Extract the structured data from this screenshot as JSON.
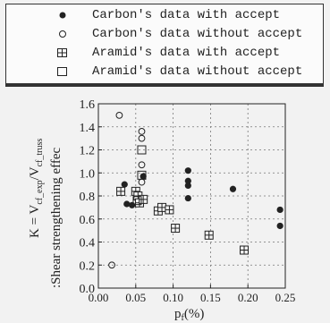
{
  "legend": {
    "items": [
      {
        "label": "Carbon's data with accept",
        "marker": "filled-circle"
      },
      {
        "label": "Carbon's data without accept",
        "marker": "open-circle"
      },
      {
        "label": "Aramid's data with accept",
        "marker": "crossed-square"
      },
      {
        "label": "Aramid's data without accept",
        "marker": "open-square"
      }
    ]
  },
  "chart_data": {
    "type": "scatter",
    "title": "",
    "ylabel_line1": "K = V",
    "ylabel_sub1": "cf_exp",
    "ylabel_slash": "/V",
    "ylabel_sub2": "cf_truss",
    "ylabel_line2": ":Shear strengthening effec",
    "xlabel_main": "p",
    "xlabel_sub": "f",
    "xlabel_unit": "(%)",
    "xlim": [
      0.0,
      0.25
    ],
    "ylim": [
      0.0,
      1.6
    ],
    "xticks": [
      0.0,
      0.05,
      0.1,
      0.15,
      0.2,
      0.25
    ],
    "xtick_labels": [
      "0.00",
      "0.05",
      "0.10",
      "0.15",
      "0.20",
      "0.25"
    ],
    "yticks": [
      0.0,
      0.2,
      0.4,
      0.6,
      0.8,
      1.0,
      1.2,
      1.4,
      1.6
    ],
    "ytick_labels": [
      "0.0",
      "0.2",
      "0.4",
      "0.6",
      "0.8",
      "1.0",
      "1.2",
      "1.4",
      "1.6"
    ],
    "grid": true,
    "series": [
      {
        "name": "Carbon's data with accept",
        "marker": "filled-circle",
        "points": [
          [
            0.035,
            0.9
          ],
          [
            0.038,
            0.73
          ],
          [
            0.045,
            0.72
          ],
          [
            0.055,
            0.78
          ],
          [
            0.06,
            0.97
          ],
          [
            0.12,
            1.02
          ],
          [
            0.12,
            0.93
          ],
          [
            0.12,
            0.89
          ],
          [
            0.12,
            0.78
          ],
          [
            0.18,
            0.86
          ],
          [
            0.243,
            0.68
          ],
          [
            0.243,
            0.54
          ]
        ]
      },
      {
        "name": "Carbon's data without accept",
        "marker": "open-circle",
        "points": [
          [
            0.028,
            1.5
          ],
          [
            0.058,
            1.36
          ],
          [
            0.058,
            1.3
          ],
          [
            0.058,
            1.07
          ],
          [
            0.058,
            0.92
          ],
          [
            0.06,
            0.76
          ],
          [
            0.018,
            0.2
          ]
        ]
      },
      {
        "name": "Aramid's data with accept",
        "marker": "crossed-square",
        "points": [
          [
            0.03,
            0.84
          ],
          [
            0.05,
            0.84
          ],
          [
            0.053,
            0.8
          ],
          [
            0.055,
            0.74
          ],
          [
            0.06,
            0.77
          ],
          [
            0.08,
            0.67
          ],
          [
            0.085,
            0.7
          ],
          [
            0.095,
            0.68
          ],
          [
            0.103,
            0.52
          ],
          [
            0.148,
            0.46
          ],
          [
            0.195,
            0.33
          ]
        ]
      },
      {
        "name": "Aramid's data without accept",
        "marker": "open-square",
        "points": [
          [
            0.058,
            1.2
          ],
          [
            0.058,
            0.98
          ],
          [
            0.052,
            0.76
          ]
        ]
      }
    ]
  }
}
